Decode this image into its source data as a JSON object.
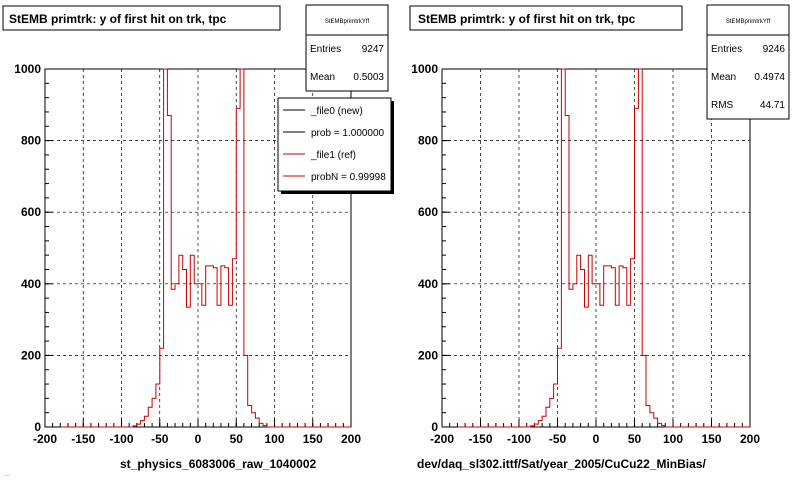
{
  "chart_data": [
    {
      "type": "histogram",
      "title": "StEMB primtrk: y of first hit on trk, tpc",
      "xlabel": "st_physics_6083006_raw_1040002",
      "xlim": [
        -200,
        200
      ],
      "ylim": [
        0,
        1000
      ],
      "xticks": [
        "-200",
        "-150",
        "-100",
        "-50",
        "0",
        "50",
        "100",
        "150",
        "200"
      ],
      "yticks": [
        "0",
        "200",
        "400",
        "600",
        "800",
        "1000"
      ],
      "grid": true,
      "bin_width": 5,
      "bins": [
        [
          -200,
          0
        ],
        [
          -195,
          0
        ],
        [
          -190,
          0
        ],
        [
          -185,
          0
        ],
        [
          -180,
          0
        ],
        [
          -175,
          0
        ],
        [
          -170,
          0
        ],
        [
          -165,
          0
        ],
        [
          -160,
          0
        ],
        [
          -155,
          0
        ],
        [
          -150,
          0
        ],
        [
          -145,
          0
        ],
        [
          -140,
          0
        ],
        [
          -135,
          0
        ],
        [
          -130,
          0
        ],
        [
          -125,
          0
        ],
        [
          -120,
          0
        ],
        [
          -115,
          0
        ],
        [
          -110,
          0
        ],
        [
          -105,
          3
        ],
        [
          -100,
          8
        ],
        [
          -95,
          18
        ],
        [
          -90,
          30
        ],
        [
          -85,
          55
        ],
        [
          -80,
          80
        ],
        [
          -75,
          120
        ],
        [
          -70,
          220
        ],
        [
          -65,
          1000
        ],
        [
          -60,
          870
        ],
        [
          -55,
          385
        ],
        [
          -50,
          400
        ],
        [
          -45,
          480
        ],
        [
          -40,
          440
        ],
        [
          -35,
          335
        ],
        [
          -30,
          480
        ],
        [
          -25,
          400
        ],
        [
          -20,
          400
        ],
        [
          -15,
          340
        ],
        [
          -10,
          450
        ],
        [
          -5,
          450
        ],
        [
          0,
          445
        ],
        [
          5,
          340
        ],
        [
          10,
          450
        ],
        [
          15,
          445
        ],
        [
          20,
          340
        ],
        [
          25,
          470
        ],
        [
          30,
          890
        ],
        [
          35,
          1000
        ],
        [
          40,
          200
        ],
        [
          45,
          60
        ],
        [
          50,
          40
        ],
        [
          55,
          25
        ],
        [
          60,
          10
        ],
        [
          65,
          4
        ],
        [
          70,
          0
        ],
        [
          75,
          0
        ],
        [
          80,
          0
        ],
        [
          85,
          0
        ],
        [
          90,
          0
        ],
        [
          95,
          0
        ],
        [
          100,
          0
        ],
        [
          105,
          0
        ],
        [
          110,
          0
        ],
        [
          115,
          0
        ],
        [
          120,
          0
        ],
        [
          125,
          0
        ],
        [
          130,
          0
        ],
        [
          135,
          0
        ],
        [
          140,
          0
        ],
        [
          145,
          0
        ],
        [
          150,
          0
        ],
        [
          155,
          0
        ],
        [
          160,
          0
        ],
        [
          165,
          0
        ],
        [
          170,
          0
        ],
        [
          175,
          0
        ],
        [
          180,
          0
        ],
        [
          185,
          0
        ],
        [
          190,
          0
        ],
        [
          195,
          0
        ]
      ],
      "bin_shift": 20,
      "colors": {
        "ref": "#cc0000",
        "new": "#000000"
      },
      "stats": {
        "name": "StEMBprimtrkYff",
        "rows": [
          {
            "label": "Entries",
            "value": "9247"
          },
          {
            "label": "Mean",
            "value": "0.5003"
          }
        ]
      },
      "legend": [
        {
          "label": "_file0 (new)",
          "color": "#000000"
        },
        {
          "label": "prob = 1.000000",
          "color": "#000000"
        },
        {
          "label": "_file1 (ref)",
          "color": "#cc0000"
        },
        {
          "label": "probN = 0.99998",
          "color": "#cc0000"
        }
      ]
    },
    {
      "type": "histogram",
      "title": "StEMB primtrk: y of first hit on trk, tpc",
      "xlabel": "dev/daq_sl302.ittf/Sat/year_2005/CuCu22_MinBias/",
      "xlim": [
        -200,
        200
      ],
      "ylim": [
        0,
        1000
      ],
      "xticks": [
        "-200",
        "-150",
        "-100",
        "-50",
        "0",
        "50",
        "100",
        "150",
        "200"
      ],
      "yticks": [
        "0",
        "200",
        "400",
        "600",
        "800",
        "1000"
      ],
      "grid": true,
      "bin_width": 5,
      "bin_shift": 20,
      "colors": {
        "ref": "#cc0000"
      },
      "stats": {
        "name": "StEMBprimtrkYff",
        "rows": [
          {
            "label": "Entries",
            "value": "9246"
          },
          {
            "label": "Mean",
            "value": "0.4974"
          },
          {
            "label": "RMS",
            "value": "44.71"
          }
        ]
      }
    }
  ],
  "footer": "..."
}
